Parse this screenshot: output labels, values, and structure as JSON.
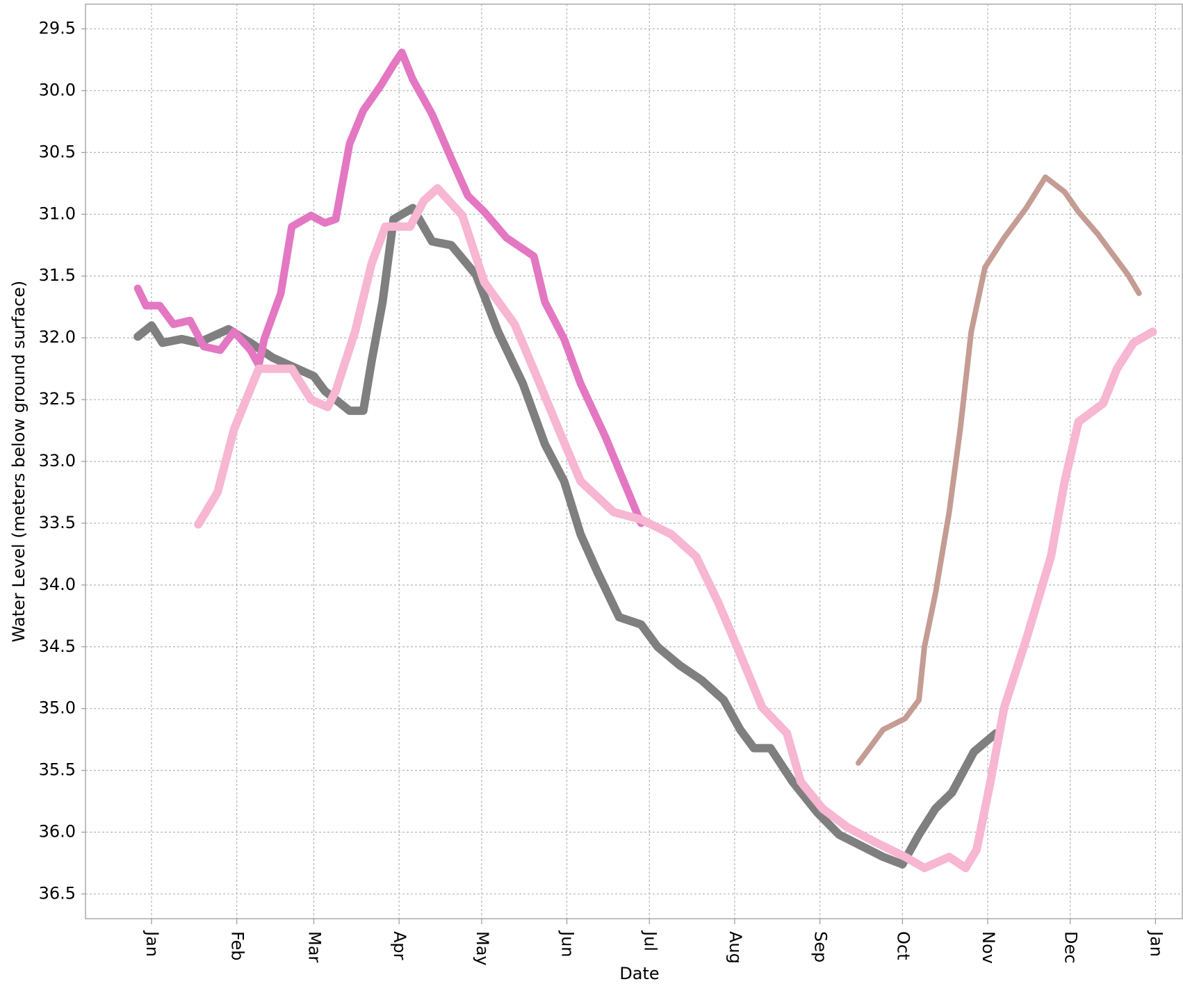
{
  "chart_data": {
    "type": "line",
    "xlabel": "Date",
    "ylabel": "Water Level (meters below ground surface)",
    "xlim": [
      -24,
      375
    ],
    "xticks": [
      {
        "value": 0,
        "label": "Jan"
      },
      {
        "value": 31,
        "label": "Feb"
      },
      {
        "value": 59,
        "label": "Mar"
      },
      {
        "value": 90,
        "label": "Apr"
      },
      {
        "value": 120,
        "label": "May"
      },
      {
        "value": 151,
        "label": "Jun"
      },
      {
        "value": 181,
        "label": "Jul"
      },
      {
        "value": 212,
        "label": "Aug"
      },
      {
        "value": 243,
        "label": "Sep"
      },
      {
        "value": 273,
        "label": "Oct"
      },
      {
        "value": 304,
        "label": "Nov"
      },
      {
        "value": 334,
        "label": "Dec"
      },
      {
        "value": 365,
        "label": "Jan"
      }
    ],
    "ylim": [
      36.7,
      29.3
    ],
    "yticks": [
      29.5,
      {
        "value": 30,
        "label": "30.0"
      },
      30.5,
      {
        "value": 31,
        "label": "31.0"
      },
      31.5,
      {
        "value": 32,
        "label": "32.0"
      },
      32.5,
      {
        "value": 33,
        "label": "33.0"
      },
      33.5,
      {
        "value": 34,
        "label": "34.0"
      },
      34.5,
      {
        "value": 35,
        "label": "35.0"
      },
      35.5,
      {
        "value": 36,
        "label": "36.0"
      },
      36.5
    ],
    "grid": true,
    "series": [
      {
        "color": "#7f7f7f",
        "linewidth": 12,
        "x": [
          -5,
          0,
          4,
          11,
          17,
          28,
          36,
          44,
          53,
          59,
          63,
          72,
          77,
          80,
          84,
          88,
          95,
          102,
          109,
          118,
          126,
          135,
          143,
          150,
          156,
          162,
          170,
          178,
          184,
          192,
          200,
          208,
          214,
          219,
          225,
          233,
          242,
          250,
          258,
          266,
          273,
          279,
          285,
          291,
          299,
          307
        ],
        "values": [
          31.99,
          31.9,
          32.04,
          32.01,
          32.04,
          31.93,
          32.04,
          32.16,
          32.25,
          32.31,
          32.43,
          32.59,
          32.59,
          32.19,
          31.71,
          31.04,
          30.95,
          31.22,
          31.25,
          31.49,
          31.95,
          32.37,
          32.86,
          33.16,
          33.59,
          33.89,
          34.26,
          34.32,
          34.5,
          34.65,
          34.77,
          34.93,
          35.17,
          35.32,
          35.32,
          35.59,
          35.84,
          36.02,
          36.11,
          36.2,
          36.26,
          36.02,
          35.81,
          35.68,
          35.35,
          35.2
        ]
      },
      {
        "color": "#e377c2",
        "linewidth": 11,
        "x": [
          -5,
          -2,
          3,
          8,
          14,
          19,
          25,
          30,
          36,
          39,
          41,
          47,
          51,
          58,
          63,
          67,
          72,
          77,
          83,
          88,
          91,
          95,
          102,
          109,
          115,
          121,
          129,
          139,
          143,
          150,
          156,
          165,
          170,
          178
        ],
        "values": [
          31.6,
          31.74,
          31.74,
          31.89,
          31.86,
          32.07,
          32.1,
          31.95,
          32.1,
          32.22,
          32.01,
          31.64,
          31.1,
          31.01,
          31.07,
          31.04,
          30.43,
          30.16,
          29.97,
          29.79,
          29.69,
          29.91,
          30.19,
          30.55,
          30.85,
          30.98,
          31.19,
          31.34,
          31.71,
          32.01,
          32.37,
          32.8,
          33.07,
          33.5
        ]
      },
      {
        "color": "#f7b6d2",
        "linewidth": 12,
        "x": [
          17,
          24,
          30,
          39,
          44,
          51,
          58,
          64,
          67,
          74,
          80,
          85,
          94,
          99,
          104,
          113,
          121,
          132,
          140,
          148,
          156,
          168,
          178,
          189,
          198,
          206,
          214,
          222,
          231,
          236,
          244,
          253,
          263,
          274,
          281,
          290,
          296,
          300,
          305,
          310,
          318,
          327,
          332,
          337,
          346,
          351,
          357,
          364
        ],
        "values": [
          33.51,
          33.25,
          32.74,
          32.25,
          32.25,
          32.25,
          32.5,
          32.56,
          32.43,
          31.95,
          31.4,
          31.1,
          31.1,
          30.89,
          30.79,
          31.01,
          31.55,
          31.89,
          32.31,
          32.74,
          33.16,
          33.41,
          33.47,
          33.59,
          33.77,
          34.14,
          34.56,
          34.99,
          35.2,
          35.59,
          35.81,
          35.96,
          36.08,
          36.2,
          36.29,
          36.2,
          36.29,
          36.14,
          35.59,
          34.99,
          34.44,
          33.77,
          33.16,
          32.68,
          32.53,
          32.25,
          32.04,
          31.95
        ]
      },
      {
        "color": "#c49c94",
        "linewidth": 8,
        "x": [
          257,
          261,
          266,
          274,
          279,
          281,
          285,
          290,
          294,
          298,
          303,
          310,
          318,
          325,
          332,
          337,
          344,
          351,
          355,
          359
        ],
        "values": [
          35.44,
          35.32,
          35.17,
          35.08,
          34.93,
          34.5,
          34.07,
          33.41,
          32.74,
          31.95,
          31.43,
          31.19,
          30.95,
          30.7,
          30.82,
          30.98,
          31.16,
          31.37,
          31.49,
          31.64
        ]
      }
    ]
  }
}
